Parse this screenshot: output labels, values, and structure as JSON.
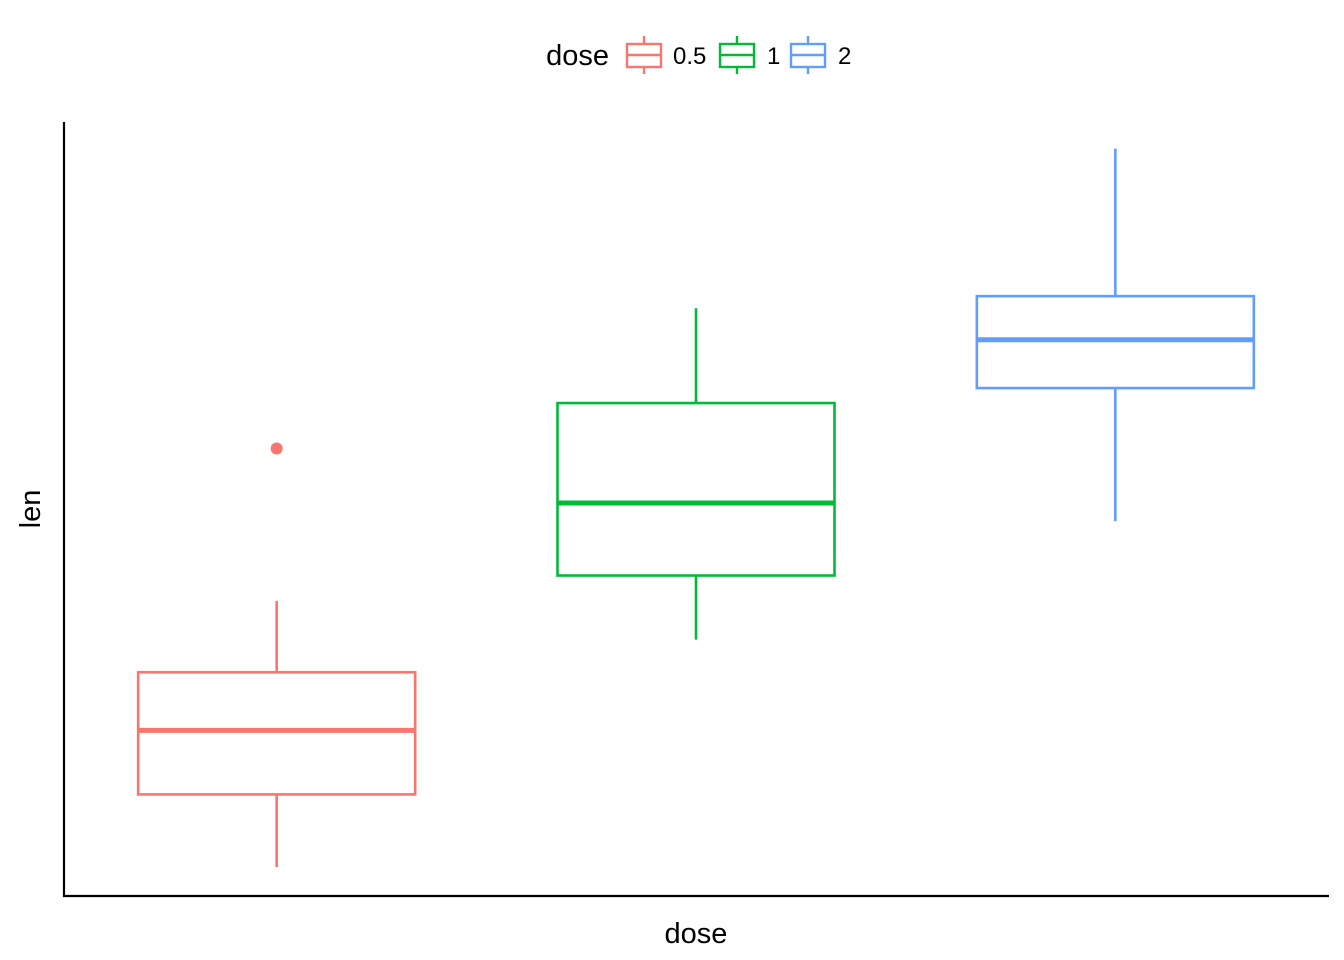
{
  "chart_data": {
    "type": "boxplot",
    "title": "",
    "xlabel": "dose",
    "ylabel": "len",
    "ylim": [
      3,
      35
    ],
    "y_tick_labels_shown": false,
    "x_tick_labels_shown": false,
    "grid": false,
    "legend": {
      "title": "dose",
      "position": "top",
      "entries": [
        "0.5",
        "1",
        "2"
      ]
    },
    "categories": [
      "0.5",
      "1",
      "2"
    ],
    "colors": [
      "#F8766D",
      "#00BA38",
      "#619CFF"
    ],
    "series": [
      {
        "name": "0.5",
        "whisker_low": 4.2,
        "q1": 7.2,
        "median": 9.85,
        "q3": 12.25,
        "whisker_high": 15.2,
        "outliers": [
          21.5
        ]
      },
      {
        "name": "1",
        "whisker_low": 13.6,
        "q1": 16.25,
        "median": 19.25,
        "q3": 23.38,
        "whisker_high": 27.3,
        "outliers": []
      },
      {
        "name": "2",
        "whisker_low": 18.5,
        "q1": 24.0,
        "median": 26.0,
        "q3": 27.8,
        "whisker_high": 33.9,
        "outliers": []
      }
    ]
  }
}
